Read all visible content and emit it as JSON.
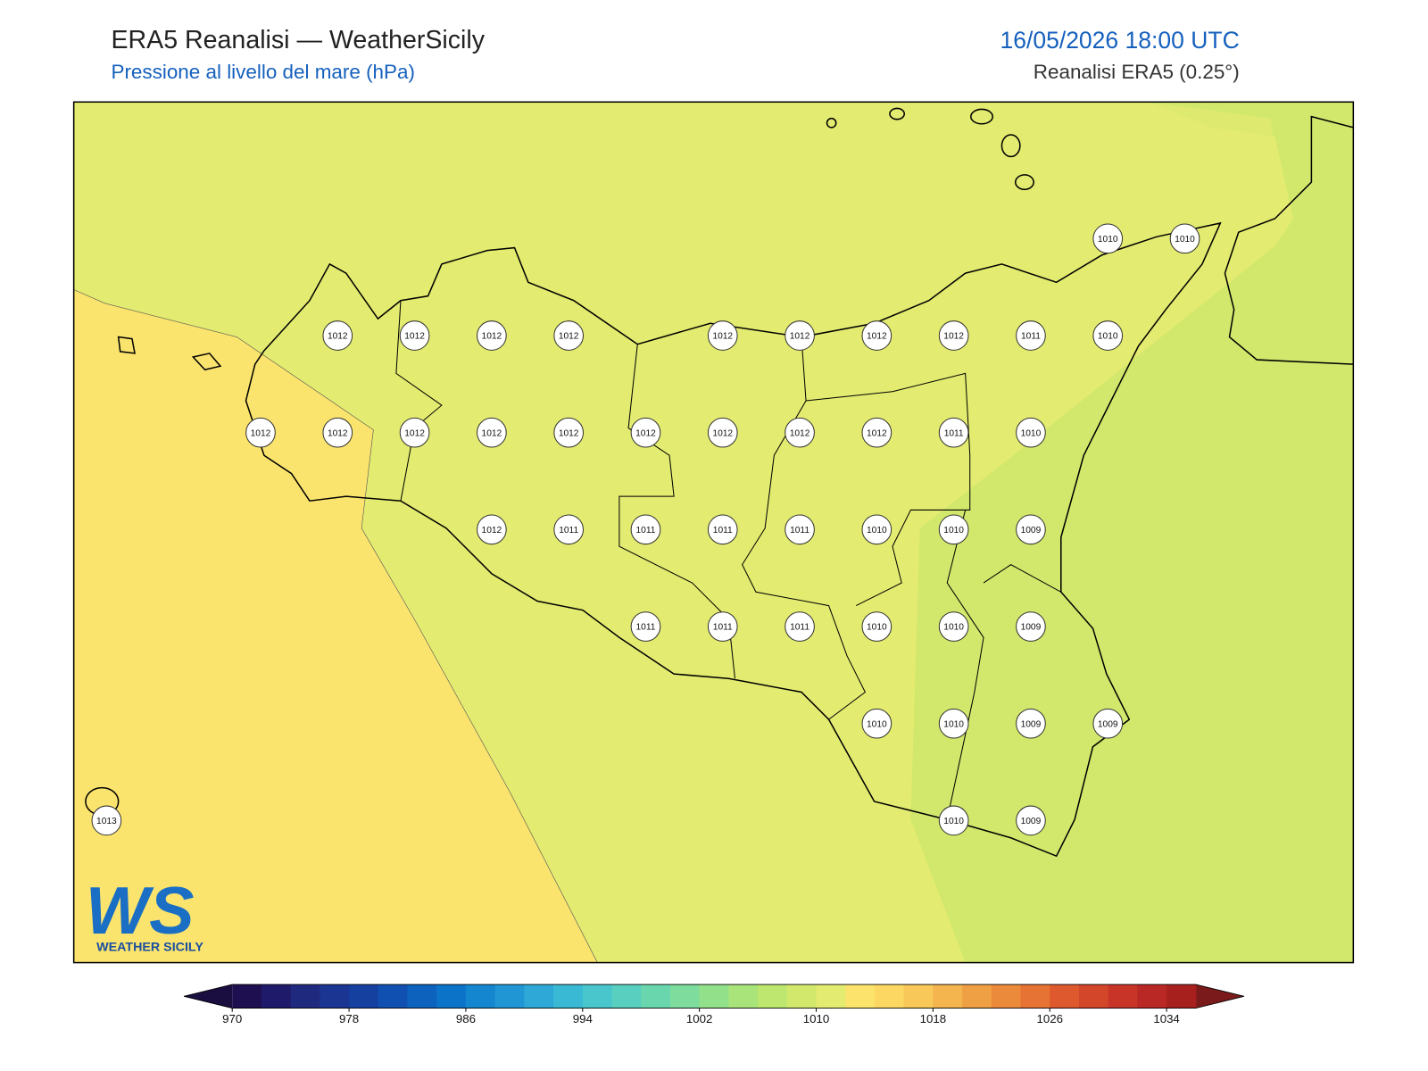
{
  "header": {
    "title": "ERA5 Reanalisi — WeatherSicily",
    "subtitle": "Pressione al livello del mare (hPa)",
    "datetime": "16/05/2026 18:00 UTC",
    "source": "Reanalisi ERA5 (0.25°)"
  },
  "stations": [
    1010,
    1010,
    1012,
    1012,
    1012,
    1012,
    1012,
    1012,
    1012,
    1012,
    1011,
    1010,
    1012,
    1012,
    1012,
    1012,
    1012,
    1012,
    1012,
    1012,
    1012,
    1011,
    1010,
    1012,
    1011,
    1011,
    1011,
    1011,
    1010,
    1010,
    1009,
    1011,
    1011,
    1011,
    1010,
    1010,
    1009,
    1010,
    1010,
    1009,
    1009,
    1013,
    1010,
    1009
  ],
  "colorbar": {
    "lim": [
      970,
      1036
    ],
    "ticks": [
      970,
      978,
      986,
      994,
      1002,
      1010,
      1018,
      1026,
      1034
    ],
    "under": "#1a0d40",
    "over": "#7a1a1a",
    "colors": [
      "#1e0f50",
      "#201a6a",
      "#1f2a7f",
      "#1b3592",
      "#1540a0",
      "#1050b0",
      "#0d62be",
      "#0c74c8",
      "#1386cf",
      "#2196d4",
      "#2ea8d6",
      "#3ab9d4",
      "#48c6cc",
      "#58cfbf",
      "#6ad6ae",
      "#7edc9c",
      "#93e08a",
      "#a8e47a",
      "#bde76e",
      "#d2e86c",
      "#e3eb70",
      "#fce46c",
      "#fcd862",
      "#f8c858",
      "#f4b44e",
      "#f0a044",
      "#ec8a3c",
      "#e67234",
      "#de5a2e",
      "#d4462a",
      "#c83428",
      "#ba2826",
      "#a8201e"
    ]
  },
  "logo": {
    "mark": "WS",
    "name": "WEATHER SICILY"
  }
}
